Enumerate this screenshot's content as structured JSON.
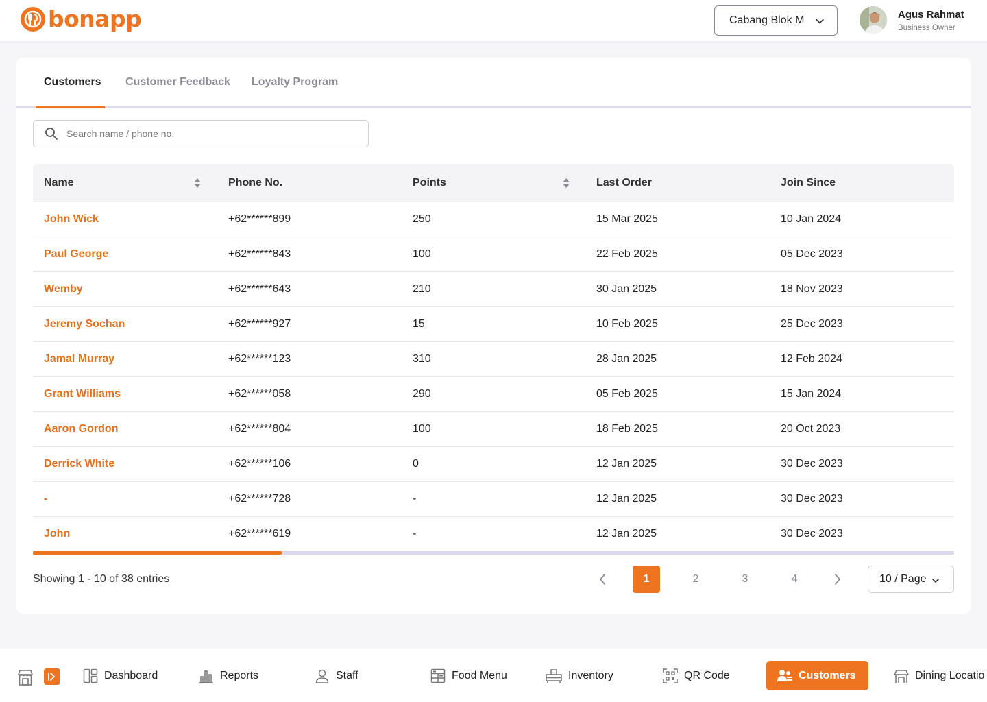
{
  "app": {
    "logo_text": "bonapp"
  },
  "header": {
    "branch": "Cabang Blok M",
    "user_name": "Agus Rahmat",
    "user_role": "Business Owner"
  },
  "tabs": [
    {
      "label": "Customers",
      "active": true
    },
    {
      "label": "Customer Feedback",
      "active": false
    },
    {
      "label": "Loyalty Program",
      "active": false
    }
  ],
  "search": {
    "placeholder": "Search name / phone no.",
    "value": ""
  },
  "table": {
    "columns": [
      "Name",
      "Phone No.",
      "Points",
      "Last Order",
      "Join Since"
    ],
    "rows": [
      [
        "John Wick",
        "+62******899",
        "250",
        "15 Mar 2025",
        "10 Jan 2024"
      ],
      [
        "Paul George",
        "+62******843",
        "100",
        "22 Feb 2025",
        "05 Dec 2023"
      ],
      [
        "Wemby",
        "+62******643",
        "210",
        "30 Jan 2025",
        "18 Nov 2023"
      ],
      [
        "Jeremy Sochan",
        "+62******927",
        "15",
        "10 Feb 2025",
        "25 Dec 2023"
      ],
      [
        "Jamal Murray",
        "+62******123",
        "310",
        "28 Jan 2025",
        "12 Feb 2024"
      ],
      [
        "Grant Williams",
        "+62******058",
        "290",
        "05 Feb 2025",
        "15 Jan 2024"
      ],
      [
        "Aaron Gordon",
        "+62******804",
        "100",
        "18 Feb 2025",
        "20 Oct 2023"
      ],
      [
        "Derrick White",
        "+62******106",
        "0",
        "12 Jan 2025",
        "30 Dec 2023"
      ],
      [
        "-",
        "+62******728",
        "-",
        "12 Jan 2025",
        "30 Dec 2023"
      ],
      [
        "John",
        "+62******619",
        "-",
        "12 Jan 2025",
        "30 Dec 2023"
      ]
    ],
    "horizontal_scroll_fraction": 0.27
  },
  "pagination": {
    "showing": "Showing 1 - 10 of 38 entries",
    "pages": [
      "1",
      "2",
      "3",
      "4"
    ],
    "current": "1",
    "per_page": "10 / Page"
  },
  "bottom_nav": [
    {
      "label": "Dashboard",
      "icon": "dashboard-icon"
    },
    {
      "label": "Reports",
      "icon": "bar-chart-icon"
    },
    {
      "label": "Staff",
      "icon": "user-icon"
    },
    {
      "label": "Food Menu",
      "icon": "food-menu-icon"
    },
    {
      "label": "Inventory",
      "icon": "inventory-icon"
    },
    {
      "label": "QR Code",
      "icon": "qr-code-icon"
    },
    {
      "label": "Customers",
      "icon": "customers-icon",
      "active": true
    },
    {
      "label": "Dining Locatio",
      "icon": "dining-location-icon"
    }
  ],
  "colors": {
    "accent": "#ee7420",
    "link": "#e86f17"
  }
}
